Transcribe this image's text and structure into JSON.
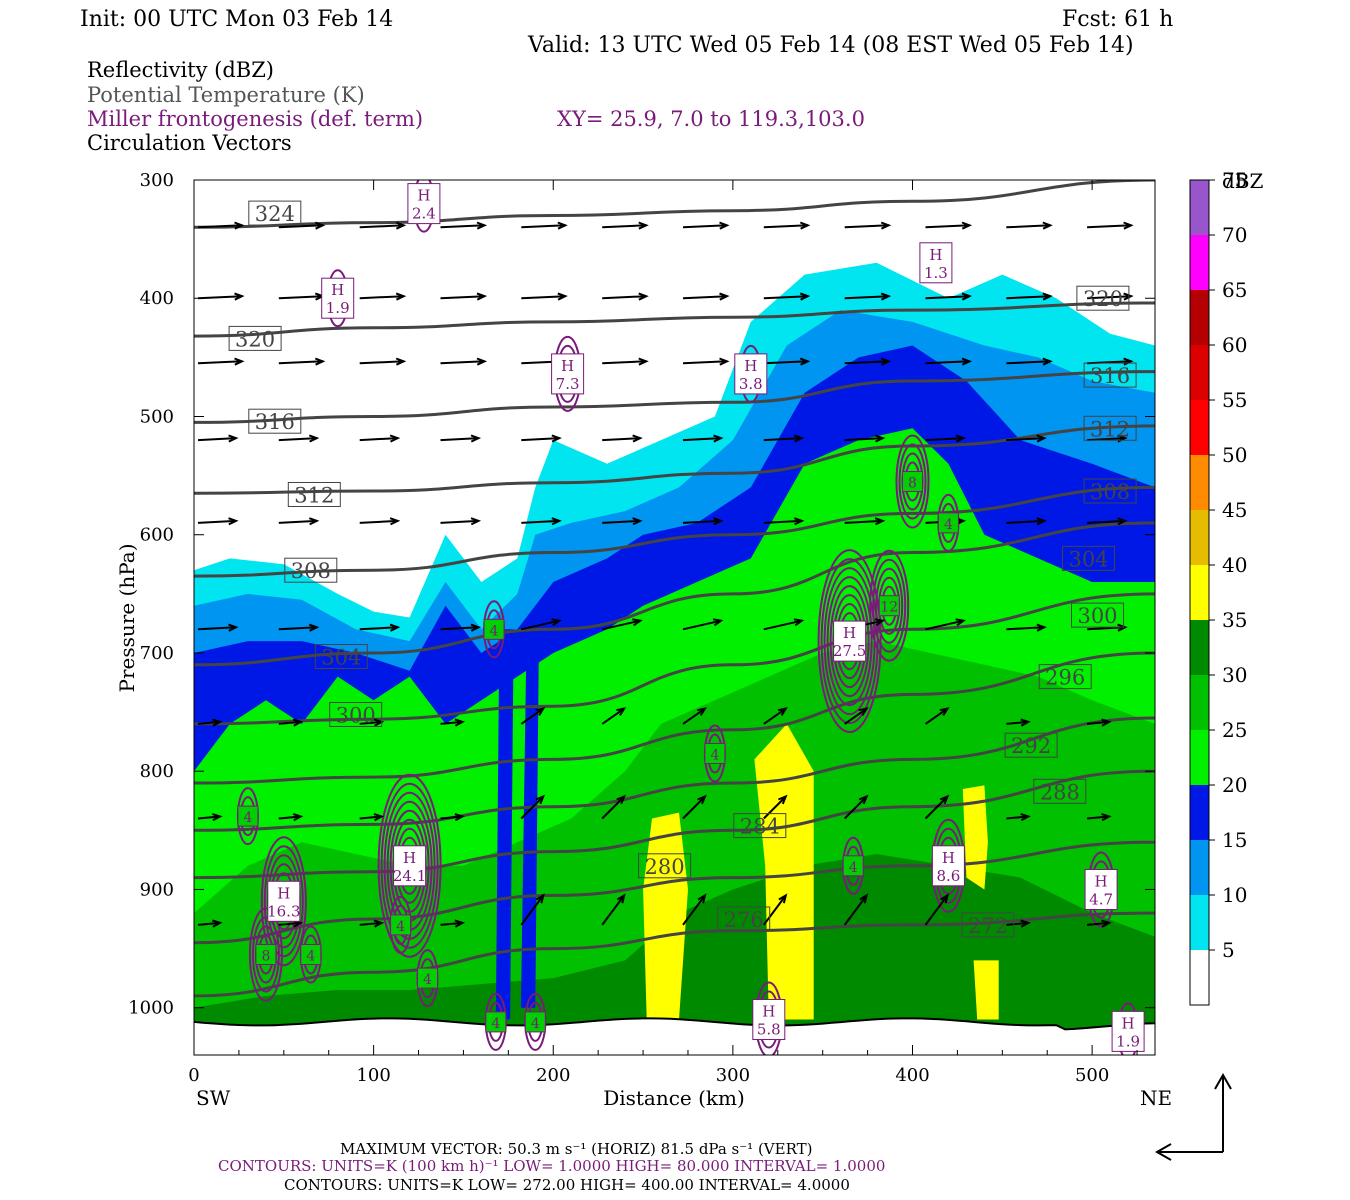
{
  "header": {
    "init": "Init: 00 UTC Mon 03 Feb 14",
    "fcst": "Fcst:   61 h",
    "valid": "Valid: 13 UTC Wed 05 Feb 14 (08 EST Wed 05 Feb 14)"
  },
  "fields": {
    "reflectivity": "Reflectivity (dBZ)",
    "theta": "Potential Temperature (K)",
    "frontogenesis": "Miller frontogenesis (def. term)",
    "xy": "XY=  25.9,  7.0 to 119.3,103.0",
    "vectors": "Circulation Vectors"
  },
  "colors": {
    "theta_line": "#444444",
    "frontogenesis": "#7a1a7a",
    "vector": "#000000"
  },
  "chart_data": {
    "type": "heatmap",
    "x_label": "Distance (km)",
    "y_label": "Pressure (hPa)",
    "x_range": [
      0,
      535
    ],
    "y_range": [
      300,
      1040
    ],
    "x_ticks": [
      "0",
      "100",
      "200",
      "300",
      "400",
      "500"
    ],
    "y_ticks": [
      "300",
      "400",
      "500",
      "600",
      "700",
      "800",
      "900",
      "1000"
    ],
    "x_tick_values": [
      0,
      100,
      200,
      300,
      400,
      500
    ],
    "y_tick_values": [
      300,
      400,
      500,
      600,
      700,
      800,
      900,
      1000
    ],
    "endpoint_left": "SW",
    "endpoint_right": "NE",
    "colorbar": {
      "unit": "dBZ",
      "levels": [
        5,
        10,
        15,
        20,
        25,
        30,
        35,
        40,
        45,
        50,
        55,
        60,
        65,
        70,
        75
      ],
      "labels": [
        "5",
        "10",
        "15",
        "20",
        "25",
        "30",
        "35",
        "40",
        "45",
        "50",
        "55",
        "60",
        "65",
        "70",
        "75"
      ],
      "colors": [
        "#ffffff",
        "#00e5f0",
        "#0095f0",
        "#0018e6",
        "#00f000",
        "#00c000",
        "#008a00",
        "#ffff00",
        "#e6bc00",
        "#ff8c00",
        "#ff0000",
        "#dc0000",
        "#b40000",
        "#ff00ff",
        "#9955cc"
      ]
    },
    "theta_contours": [
      {
        "label": "324",
        "k": 324,
        "pts": [
          [
            0,
            340
          ],
          [
            100,
            336
          ],
          [
            200,
            330
          ],
          [
            300,
            326
          ],
          [
            400,
            318
          ],
          [
            535,
            300
          ]
        ]
      },
      {
        "label": "320",
        "k": 320,
        "pts": [
          [
            0,
            432
          ],
          [
            100,
            425
          ],
          [
            200,
            420
          ],
          [
            300,
            416
          ],
          [
            400,
            410
          ],
          [
            535,
            404
          ]
        ]
      },
      {
        "label": "316",
        "k": 316,
        "pts": [
          [
            0,
            505
          ],
          [
            100,
            500
          ],
          [
            200,
            492
          ],
          [
            300,
            488
          ],
          [
            400,
            470
          ],
          [
            535,
            462
          ]
        ]
      },
      {
        "label": "312",
        "k": 312,
        "pts": [
          [
            0,
            565
          ],
          [
            100,
            563
          ],
          [
            200,
            556
          ],
          [
            300,
            548
          ],
          [
            400,
            525
          ],
          [
            535,
            508
          ]
        ]
      },
      {
        "label": "308",
        "k": 308,
        "pts": [
          [
            0,
            635
          ],
          [
            100,
            630
          ],
          [
            200,
            615
          ],
          [
            300,
            600
          ],
          [
            400,
            582
          ],
          [
            535,
            560
          ]
        ]
      },
      {
        "label": "304",
        "k": 304,
        "pts": [
          [
            0,
            710
          ],
          [
            100,
            700
          ],
          [
            200,
            680
          ],
          [
            300,
            650
          ],
          [
            400,
            615
          ],
          [
            535,
            590
          ]
        ]
      },
      {
        "label": "300",
        "k": 300,
        "pts": [
          [
            0,
            760
          ],
          [
            100,
            756
          ],
          [
            200,
            745
          ],
          [
            300,
            710
          ],
          [
            400,
            680
          ],
          [
            535,
            650
          ]
        ]
      },
      {
        "label": "296",
        "k": 296,
        "pts": [
          [
            0,
            810
          ],
          [
            100,
            805
          ],
          [
            200,
            790
          ],
          [
            300,
            765
          ],
          [
            400,
            735
          ],
          [
            535,
            700
          ]
        ]
      },
      {
        "label": "292",
        "k": 292,
        "pts": [
          [
            0,
            850
          ],
          [
            100,
            845
          ],
          [
            200,
            830
          ],
          [
            300,
            810
          ],
          [
            400,
            790
          ],
          [
            535,
            755
          ]
        ]
      },
      {
        "label": "288",
        "k": 288,
        "pts": [
          [
            0,
            890
          ],
          [
            100,
            885
          ],
          [
            200,
            868
          ],
          [
            300,
            850
          ],
          [
            400,
            830
          ],
          [
            535,
            800
          ]
        ]
      },
      {
        "label": "284",
        "k": 284,
        "pts": [
          [
            0,
            945
          ],
          [
            100,
            925
          ],
          [
            200,
            905
          ],
          [
            300,
            890
          ],
          [
            400,
            880
          ],
          [
            535,
            860
          ]
        ]
      },
      {
        "label": "280",
        "k": 280,
        "pts": [
          [
            0,
            990
          ],
          [
            100,
            970
          ],
          [
            200,
            950
          ],
          [
            300,
            935
          ],
          [
            400,
            930
          ],
          [
            535,
            920
          ]
        ]
      }
    ],
    "theta_labels": [
      {
        "text": "324",
        "x": 45,
        "p": 328
      },
      {
        "text": "320",
        "x": 34,
        "p": 434
      },
      {
        "text": "316",
        "x": 45,
        "p": 504
      },
      {
        "text": "312",
        "x": 67,
        "p": 566
      },
      {
        "text": "308",
        "x": 65,
        "p": 630
      },
      {
        "text": "304",
        "x": 82,
        "p": 703
      },
      {
        "text": "300",
        "x": 90,
        "p": 752
      },
      {
        "text": "296",
        "x": 485,
        "p": 720
      },
      {
        "text": "292",
        "x": 466,
        "p": 778
      },
      {
        "text": "288",
        "x": 482,
        "p": 817
      },
      {
        "text": "284",
        "x": 315,
        "p": 846
      },
      {
        "text": "280",
        "x": 262,
        "p": 880
      },
      {
        "text": "276",
        "x": 306,
        "p": 925
      },
      {
        "text": "272",
        "x": 442,
        "p": 930
      },
      {
        "text": "320",
        "x": 506,
        "p": 400
      },
      {
        "text": "316",
        "x": 510,
        "p": 465
      },
      {
        "text": "312",
        "x": 510,
        "p": 510
      },
      {
        "text": "308",
        "x": 510,
        "p": 563
      },
      {
        "text": "304",
        "x": 498,
        "p": 620
      },
      {
        "text": "300",
        "x": 503,
        "p": 668
      }
    ],
    "frontogenesis_maxima": [
      {
        "label": "H",
        "value": "2.4",
        "x": 128,
        "p": 320
      },
      {
        "label": "H",
        "value": "1.9",
        "x": 80,
        "p": 400
      },
      {
        "label": "H",
        "value": "7.3",
        "x": 208,
        "p": 464
      },
      {
        "label": "H",
        "value": "3.8",
        "x": 310,
        "p": 464
      },
      {
        "label": "H",
        "value": "1.3",
        "x": 413,
        "p": 370
      },
      {
        "label": "H",
        "value": "27.5",
        "x": 365,
        "p": 690
      },
      {
        "label": "H",
        "value": "24.1",
        "x": 120,
        "p": 880
      },
      {
        "label": "H",
        "value": "16.3",
        "x": 50,
        "p": 910
      },
      {
        "label": "H",
        "value": "8.6",
        "x": 420,
        "p": 880
      },
      {
        "label": "H",
        "value": "4.7",
        "x": 505,
        "p": 900
      },
      {
        "label": "H",
        "value": "5.8",
        "x": 320,
        "p": 1010
      },
      {
        "label": "H",
        "value": "1.9",
        "x": 520,
        "p": 1020
      },
      {
        "label": "",
        "value": "12",
        "x": 387,
        "p": 660
      },
      {
        "label": "",
        "value": "8",
        "x": 400,
        "p": 555
      },
      {
        "label": "",
        "value": "4",
        "x": 420,
        "p": 590
      },
      {
        "label": "",
        "value": "4",
        "x": 167,
        "p": 680
      },
      {
        "label": "",
        "value": "4",
        "x": 290,
        "p": 785
      },
      {
        "label": "",
        "value": "4",
        "x": 30,
        "p": 838
      },
      {
        "label": "",
        "value": "4",
        "x": 65,
        "p": 955
      },
      {
        "label": "",
        "value": "8",
        "x": 40,
        "p": 955
      },
      {
        "label": "",
        "value": "4",
        "x": 115,
        "p": 930
      },
      {
        "label": "",
        "value": "4",
        "x": 130,
        "p": 975
      },
      {
        "label": "",
        "value": "4",
        "x": 168,
        "p": 1012
      },
      {
        "label": "",
        "value": "4",
        "x": 190,
        "p": 1012
      },
      {
        "label": "",
        "value": "4",
        "x": 367,
        "p": 880
      }
    ],
    "vector_rows_p": [
      340,
      400,
      455,
      520,
      590,
      680,
      760,
      840,
      930
    ],
    "vector_cols_x": [
      0,
      45,
      90,
      135,
      180,
      225,
      270,
      315,
      360,
      405,
      450,
      495
    ]
  },
  "footer": {
    "max_vector": "MAXIMUM VECTOR:  50.3 m s⁻¹ (HORIZ)          81.5 dPa s⁻¹ (VERT)",
    "contours1": "CONTOURS:  UNITS=K (100 km h)⁻¹  LOW=  1.0000        HIGH=  80.000        INTERVAL=   1.0000",
    "contours2": "CONTOURS:  UNITS=K  LOW=  272.00          HIGH=  400.00          INTERVAL=   4.0000"
  }
}
